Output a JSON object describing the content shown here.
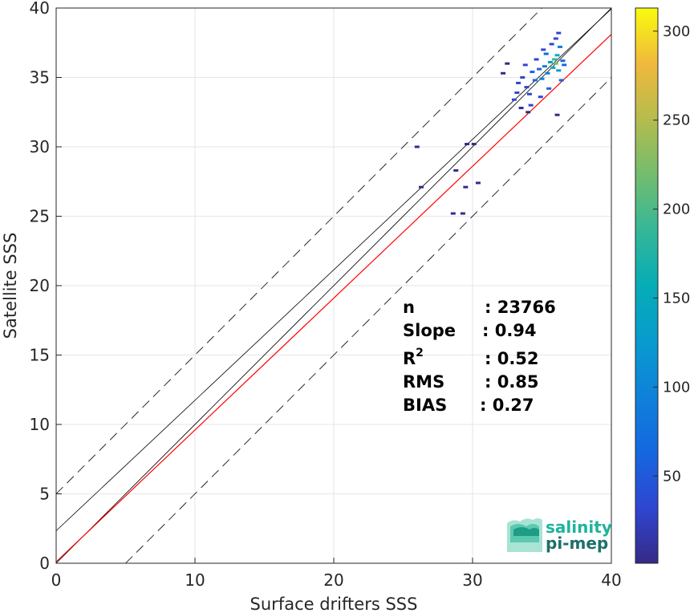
{
  "chart_data": {
    "type": "heatmap",
    "xlabel": "Surface drifters SSS",
    "ylabel": "Satellite SSS",
    "xlim": [
      0,
      40
    ],
    "ylim": [
      0,
      40
    ],
    "xticks": [
      0,
      10,
      20,
      30,
      40
    ],
    "yticks": [
      0,
      5,
      10,
      15,
      20,
      25,
      30,
      35,
      40
    ],
    "grid": true,
    "colorbar": {
      "range": [
        1,
        313
      ],
      "ticks": [
        50,
        100,
        150,
        200,
        250,
        300
      ],
      "colormap": "parula"
    },
    "lines": [
      {
        "name": "identity",
        "slope": 1.0,
        "intercept": 0.0,
        "color": "#000000",
        "style": "solid"
      },
      {
        "name": "identity-plus-5",
        "slope": 1.0,
        "intercept": 5.0,
        "color": "#000000",
        "style": "dashed"
      },
      {
        "name": "identity-minus-5",
        "slope": 1.0,
        "intercept": -5.0,
        "color": "#000000",
        "style": "dashed"
      },
      {
        "name": "fit",
        "slope": 0.94,
        "intercept": 2.34,
        "color": "#000000",
        "style": "solid"
      },
      {
        "name": "fit-lower",
        "slope": 0.95,
        "intercept": 0.1,
        "color": "#ff0000",
        "style": "solid"
      }
    ],
    "scatter_points": [
      {
        "x": 26.0,
        "y": 30.0,
        "v": 8
      },
      {
        "x": 26.3,
        "y": 27.1,
        "v": 5
      },
      {
        "x": 28.6,
        "y": 25.2,
        "v": 10
      },
      {
        "x": 29.3,
        "y": 25.2,
        "v": 10
      },
      {
        "x": 28.8,
        "y": 28.3,
        "v": 6
      },
      {
        "x": 29.5,
        "y": 27.1,
        "v": 4
      },
      {
        "x": 30.4,
        "y": 27.4,
        "v": 6
      },
      {
        "x": 29.6,
        "y": 30.2,
        "v": 9
      },
      {
        "x": 30.1,
        "y": 30.2,
        "v": 8
      },
      {
        "x": 33.0,
        "y": 33.4,
        "v": 25
      },
      {
        "x": 33.3,
        "y": 34.6,
        "v": 30
      },
      {
        "x": 33.6,
        "y": 35.0,
        "v": 40
      },
      {
        "x": 33.9,
        "y": 34.3,
        "v": 45
      },
      {
        "x": 34.1,
        "y": 33.8,
        "v": 35
      },
      {
        "x": 34.3,
        "y": 35.4,
        "v": 50
      },
      {
        "x": 34.5,
        "y": 34.8,
        "v": 60
      },
      {
        "x": 34.8,
        "y": 35.6,
        "v": 70
      },
      {
        "x": 35.0,
        "y": 34.9,
        "v": 80
      },
      {
        "x": 35.2,
        "y": 35.8,
        "v": 95
      },
      {
        "x": 35.4,
        "y": 35.3,
        "v": 110
      },
      {
        "x": 35.6,
        "y": 36.1,
        "v": 130
      },
      {
        "x": 35.8,
        "y": 35.7,
        "v": 160
      },
      {
        "x": 35.9,
        "y": 36.3,
        "v": 190
      },
      {
        "x": 36.0,
        "y": 36.0,
        "v": 220
      },
      {
        "x": 36.1,
        "y": 36.6,
        "v": 150
      },
      {
        "x": 36.2,
        "y": 35.5,
        "v": 120
      },
      {
        "x": 36.3,
        "y": 37.2,
        "v": 80
      },
      {
        "x": 36.0,
        "y": 37.8,
        "v": 40
      },
      {
        "x": 36.4,
        "y": 34.8,
        "v": 60
      },
      {
        "x": 35.5,
        "y": 34.2,
        "v": 50
      },
      {
        "x": 34.9,
        "y": 33.6,
        "v": 30
      },
      {
        "x": 34.2,
        "y": 33.0,
        "v": 20
      },
      {
        "x": 33.5,
        "y": 32.8,
        "v": 15
      },
      {
        "x": 32.5,
        "y": 36.0,
        "v": 12
      },
      {
        "x": 32.2,
        "y": 35.3,
        "v": 10
      },
      {
        "x": 35.1,
        "y": 37.0,
        "v": 35
      },
      {
        "x": 35.7,
        "y": 37.4,
        "v": 45
      },
      {
        "x": 36.5,
        "y": 36.2,
        "v": 70
      },
      {
        "x": 36.6,
        "y": 35.9,
        "v": 50
      },
      {
        "x": 33.8,
        "y": 35.9,
        "v": 25
      },
      {
        "x": 34.6,
        "y": 36.3,
        "v": 30
      },
      {
        "x": 35.3,
        "y": 36.7,
        "v": 55
      },
      {
        "x": 34.0,
        "y": 32.5,
        "v": 12
      },
      {
        "x": 33.2,
        "y": 33.9,
        "v": 18
      },
      {
        "x": 36.2,
        "y": 38.2,
        "v": 20
      },
      {
        "x": 36.1,
        "y": 32.3,
        "v": 10
      }
    ]
  },
  "stats": {
    "rows": [
      {
        "key": "n",
        "sup": "",
        "value": ": 23766"
      },
      {
        "key": "Slope",
        "sup": "",
        "value": ": 0.94"
      },
      {
        "key": "R",
        "sup": "2",
        "value": ": 0.52"
      },
      {
        "key": "RMS",
        "sup": "",
        "value": ": 0.85"
      },
      {
        "key": "BIAS",
        "sup": "",
        "value": ": 0.27"
      }
    ]
  },
  "logo": {
    "line1": "salinity",
    "line2": "pi-mep",
    "colors": [
      "#1fb39c",
      "#1e6f6a"
    ]
  },
  "colors": {
    "identity_line": "#000000",
    "fit_line": "#ff0000",
    "grid": "#e6e6e6",
    "axes": "#262626"
  }
}
